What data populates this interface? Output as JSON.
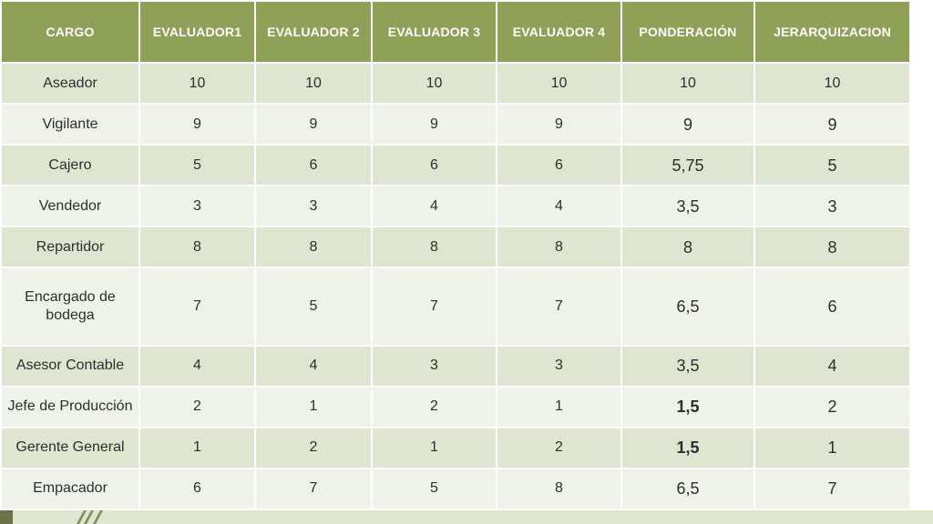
{
  "table": {
    "headers": [
      "CARGO",
      "EVALUADOR1",
      "EVALUADOR 2",
      "EVALUADOR 3",
      "EVALUADOR 4",
      "PONDERACIÓN",
      "JERARQUIZACION"
    ],
    "rows": [
      [
        "Aseador",
        "10",
        "10",
        "10",
        "10",
        "10",
        "10"
      ],
      [
        "Vigilante",
        "9",
        "9",
        "9",
        "9",
        "9",
        "9"
      ],
      [
        "Cajero",
        "5",
        "6",
        "6",
        "6",
        "5,75",
        "5"
      ],
      [
        "Vendedor",
        "3",
        "3",
        "4",
        "4",
        "3,5",
        "3"
      ],
      [
        "Repartidor",
        "8",
        "8",
        "8",
        "8",
        "8",
        "8"
      ],
      [
        "Encargado de bodega",
        "7",
        "5",
        "7",
        "7",
        "6,5",
        "6"
      ],
      [
        "Asesor Contable",
        "4",
        "4",
        "3",
        "3",
        "3,5",
        "4"
      ],
      [
        "Jefe de Producción",
        "2",
        "1",
        "2",
        "1",
        "1,5",
        "2"
      ],
      [
        "Gerente General",
        "1",
        "2",
        "1",
        "2",
        "1,5",
        "1"
      ],
      [
        "Empacador",
        "6",
        "7",
        "5",
        "8",
        "6,5",
        "7"
      ]
    ]
  },
  "colors": {
    "header_bg": "#8ea157",
    "row_odd_bg": "#dee5d1",
    "row_even_bg": "#eef2e8",
    "text": "#2e2e2e"
  }
}
